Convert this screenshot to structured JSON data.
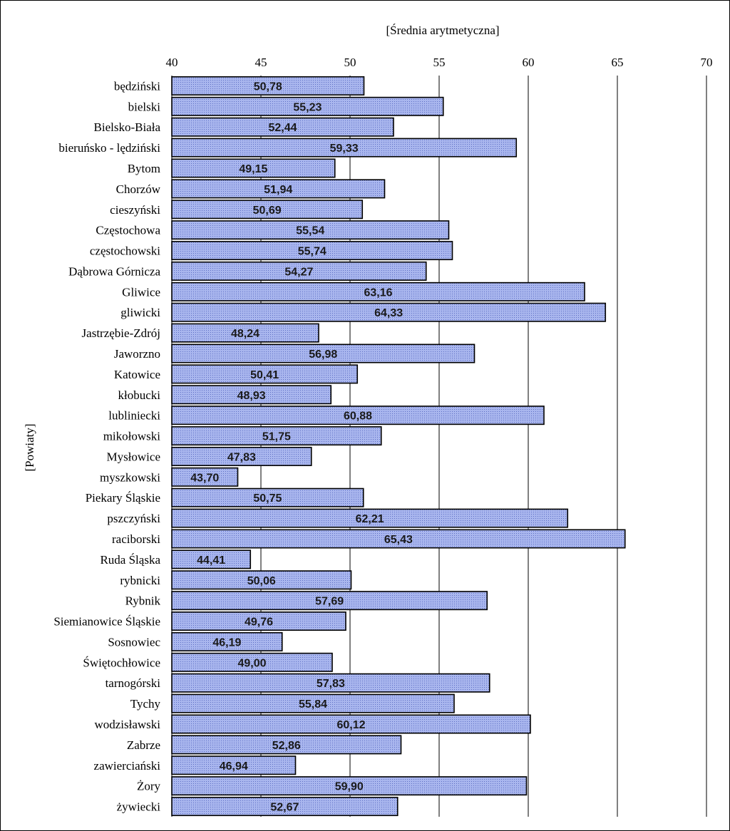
{
  "chart_data": {
    "type": "bar",
    "orientation": "horizontal",
    "title": "",
    "xlabel": "[Średnia arytmetyczna]",
    "ylabel": "[Powiaty]",
    "xlim": [
      40,
      70
    ],
    "xticks": [
      40,
      45,
      50,
      55,
      60,
      65,
      70
    ],
    "xtick_labels": [
      "40",
      "45",
      "50",
      "55",
      "60",
      "65",
      "70"
    ],
    "grid": "vertical",
    "legend": "none",
    "bar_color": "#9aa8e6",
    "categories": [
      "będziński",
      "bielski",
      "Bielsko-Biała",
      "bieruńsko - lędziński",
      "Bytom",
      "Chorzów",
      "cieszyński",
      "Częstochowa",
      "częstochowski",
      "Dąbrowa Górnicza",
      "Gliwice",
      "gliwicki",
      "Jastrzębie-Zdrój",
      "Jaworzno",
      "Katowice",
      "kłobucki",
      "lubliniecki",
      "mikołowski",
      "Mysłowice",
      "myszkowski",
      "Piekary Śląskie",
      "pszczyński",
      "raciborski",
      "Ruda Śląska",
      "rybnicki",
      "Rybnik",
      "Siemianowice Śląskie",
      "Sosnowiec",
      "Świętochłowice",
      "tarnogórski",
      "Tychy",
      "wodzisławski",
      "Zabrze",
      "zawierciański",
      "Żory",
      "żywiecki"
    ],
    "values": [
      50.78,
      55.23,
      52.44,
      59.33,
      49.15,
      51.94,
      50.69,
      55.54,
      55.74,
      54.27,
      63.16,
      64.33,
      48.24,
      56.98,
      50.41,
      48.93,
      60.88,
      51.75,
      47.83,
      43.7,
      50.75,
      62.21,
      65.43,
      44.41,
      50.06,
      57.69,
      49.76,
      46.19,
      49.0,
      57.83,
      55.84,
      60.12,
      52.86,
      46.94,
      59.9,
      52.67
    ],
    "value_labels": [
      "50,78",
      "55,23",
      "52,44",
      "59,33",
      "49,15",
      "51,94",
      "50,69",
      "55,54",
      "55,74",
      "54,27",
      "63,16",
      "64,33",
      "48,24",
      "56,98",
      "50,41",
      "48,93",
      "60,88",
      "51,75",
      "47,83",
      "43,70",
      "50,75",
      "62,21",
      "65,43",
      "44,41",
      "50,06",
      "57,69",
      "49,76",
      "46,19",
      "49,00",
      "57,83",
      "55,84",
      "60,12",
      "52,86",
      "46,94",
      "59,90",
      "52,67"
    ]
  }
}
